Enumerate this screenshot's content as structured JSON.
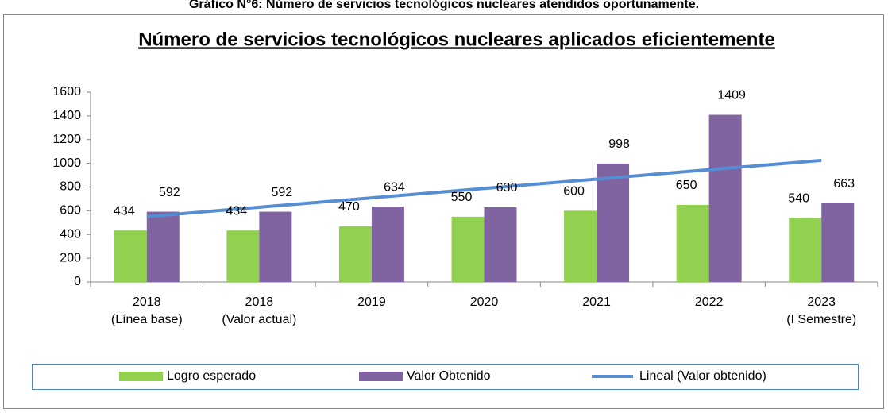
{
  "chart_data": {
    "type": "bar",
    "caption": "Gráfico N°6: Número de servicios tecnológicos nucleares atendidos oportunamente.",
    "title": "Número de servicios tecnológicos nucleares aplicados eficientemente",
    "categories": [
      [
        "2018",
        "(Línea base)"
      ],
      [
        "2018",
        "(Valor actual)"
      ],
      [
        "2019"
      ],
      [
        "2020"
      ],
      [
        "2021"
      ],
      [
        "2022"
      ],
      [
        "2023",
        "(I Semestre)"
      ]
    ],
    "series": [
      {
        "name": "Logro esperado",
        "color": "#92d050",
        "values": [
          434,
          434,
          470,
          550,
          600,
          650,
          540
        ]
      },
      {
        "name": "Valor Obtenido",
        "color": "#8064a2",
        "values": [
          592,
          592,
          634,
          630,
          998,
          1409,
          663
        ]
      },
      {
        "name": "Lineal (Valor obtenido)",
        "color": "#558ed5",
        "type": "line",
        "values": [
          551,
          630,
          709,
          788,
          867,
          946,
          1025
        ]
      }
    ],
    "ylim": [
      0,
      1600
    ],
    "yticks": [
      0,
      200,
      400,
      600,
      800,
      1000,
      1200,
      1400,
      1600
    ],
    "grid": false,
    "legend": "bottom"
  }
}
